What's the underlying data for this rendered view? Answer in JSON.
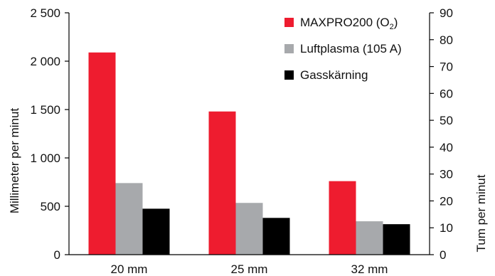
{
  "chart_data": {
    "type": "bar",
    "categories": [
      "20 mm",
      "25 mm",
      "32 mm"
    ],
    "series": [
      {
        "name": "MAXPRO200 (O",
        "name_sub": "2",
        "name_suffix": ")",
        "color": "#ee1c2f",
        "values": [
          2090,
          1480,
          760
        ]
      },
      {
        "name": "Luftplasma (105 A)",
        "color": "#a7a9ac",
        "values": [
          740,
          535,
          345
        ]
      },
      {
        "name": "Gasskärning",
        "color": "#000000",
        "values": [
          475,
          380,
          315
        ]
      }
    ],
    "ylabel": "Millimeter per minut",
    "ylim": [
      0,
      2500
    ],
    "yticks": [
      0,
      500,
      1000,
      1500,
      2000,
      2500
    ],
    "ytick_labels": [
      "0",
      "500",
      "1 000",
      "1 500",
      "2 000",
      "2 500"
    ],
    "y2label": "Tum per minut",
    "y2lim": [
      0,
      90
    ],
    "y2ticks": [
      0,
      10,
      20,
      30,
      40,
      50,
      60,
      70,
      80,
      90
    ],
    "y2tick_labels": [
      "0",
      "10",
      "20",
      "30",
      "40",
      "50",
      "60",
      "70",
      "80",
      "90"
    ],
    "legend_position": "top-right",
    "grid": false
  }
}
